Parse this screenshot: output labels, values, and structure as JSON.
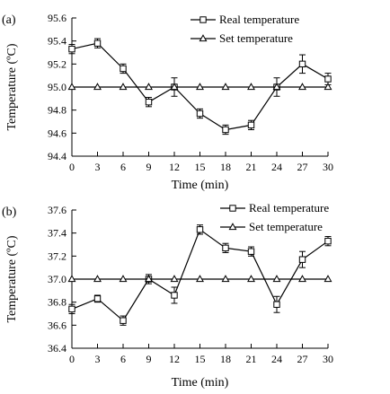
{
  "chart_data": [
    {
      "panel_label": "(a)",
      "type": "line",
      "xlabel": "Time (min)",
      "ylabel": "Temperature (ºC)",
      "xlim": [
        0,
        30
      ],
      "ylim": [
        94.4,
        95.6
      ],
      "x_ticks": [
        "0",
        "3",
        "6",
        "9",
        "12",
        "15",
        "18",
        "21",
        "24",
        "27",
        "30"
      ],
      "y_ticks": [
        "94.4",
        "94.6",
        "94.8",
        "95.0",
        "95.2",
        "95.4",
        "95.6"
      ],
      "legend_position": "top-right",
      "grid": false,
      "x": [
        0,
        3,
        6,
        9,
        12,
        15,
        18,
        21,
        24,
        27,
        30
      ],
      "series": [
        {
          "name": "Real temperature",
          "marker": "square",
          "values": [
            95.33,
            95.38,
            95.16,
            94.87,
            95.0,
            94.77,
            94.63,
            94.67,
            95.0,
            95.2,
            95.07
          ],
          "errors": [
            0.04,
            0.04,
            0.04,
            0.04,
            0.08,
            0.04,
            0.04,
            0.04,
            0.08,
            0.08,
            0.05
          ]
        },
        {
          "name": "Set temperature",
          "marker": "triangle",
          "values": [
            95.0,
            95.0,
            95.0,
            95.0,
            95.0,
            95.0,
            95.0,
            95.0,
            95.0,
            95.0,
            95.0
          ]
        }
      ]
    },
    {
      "panel_label": "(b)",
      "type": "line",
      "xlabel": "Time (min)",
      "ylabel": "Temperature (ºC)",
      "xlim": [
        0,
        30
      ],
      "ylim": [
        36.4,
        37.6
      ],
      "x_ticks": [
        "0",
        "3",
        "6",
        "9",
        "12",
        "15",
        "18",
        "21",
        "24",
        "27",
        "30"
      ],
      "y_ticks": [
        "36.4",
        "36.6",
        "36.8",
        "37.0",
        "37.2",
        "37.4",
        "37.6"
      ],
      "legend_position": "top-right",
      "grid": false,
      "x": [
        0,
        3,
        6,
        9,
        12,
        15,
        18,
        21,
        24,
        27,
        30
      ],
      "series": [
        {
          "name": "Real temperature",
          "marker": "square",
          "values": [
            36.74,
            36.83,
            36.64,
            37.0,
            36.86,
            37.43,
            37.27,
            37.24,
            36.78,
            37.17,
            37.33
          ],
          "errors": [
            0.04,
            0.03,
            0.04,
            0.04,
            0.07,
            0.04,
            0.04,
            0.04,
            0.07,
            0.07,
            0.04
          ]
        },
        {
          "name": "Set temperature",
          "marker": "triangle",
          "values": [
            37.0,
            37.0,
            37.0,
            37.0,
            37.0,
            37.0,
            37.0,
            37.0,
            37.0,
            37.0,
            37.0
          ]
        }
      ]
    }
  ]
}
